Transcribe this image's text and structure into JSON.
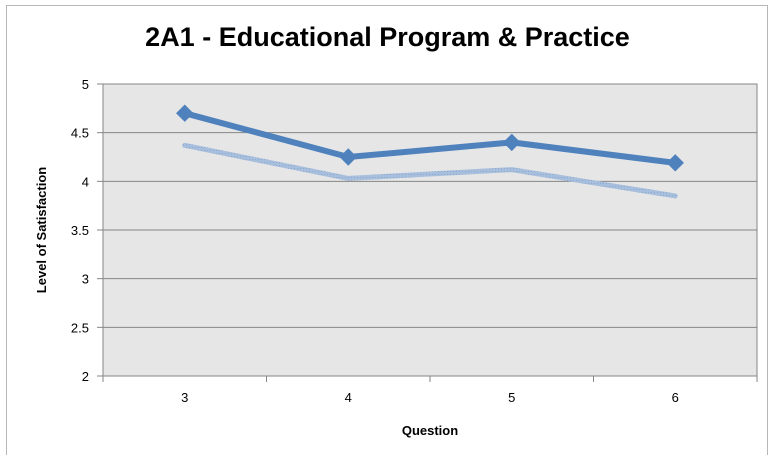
{
  "chart_data": {
    "type": "line",
    "title": "2A1 - Educational Program & Practice",
    "xlabel": "Question",
    "ylabel": "Level of Satisfaction",
    "categories": [
      "3",
      "4",
      "5",
      "6"
    ],
    "ylim": [
      2,
      5
    ],
    "yticks": [
      "2",
      "2.5",
      "3",
      "3.5",
      "4",
      "4.5",
      "5"
    ],
    "grid": true,
    "legend": "none",
    "series": [
      {
        "values": [
          4.7,
          4.25,
          4.4,
          4.19
        ],
        "color": "#4f81bd",
        "marker": "diamond"
      },
      {
        "values": [
          4.37,
          4.03,
          4.12,
          3.85
        ],
        "color": "#a7bfdc",
        "marker": "none"
      }
    ],
    "plot_background": "#e6e6e6"
  }
}
